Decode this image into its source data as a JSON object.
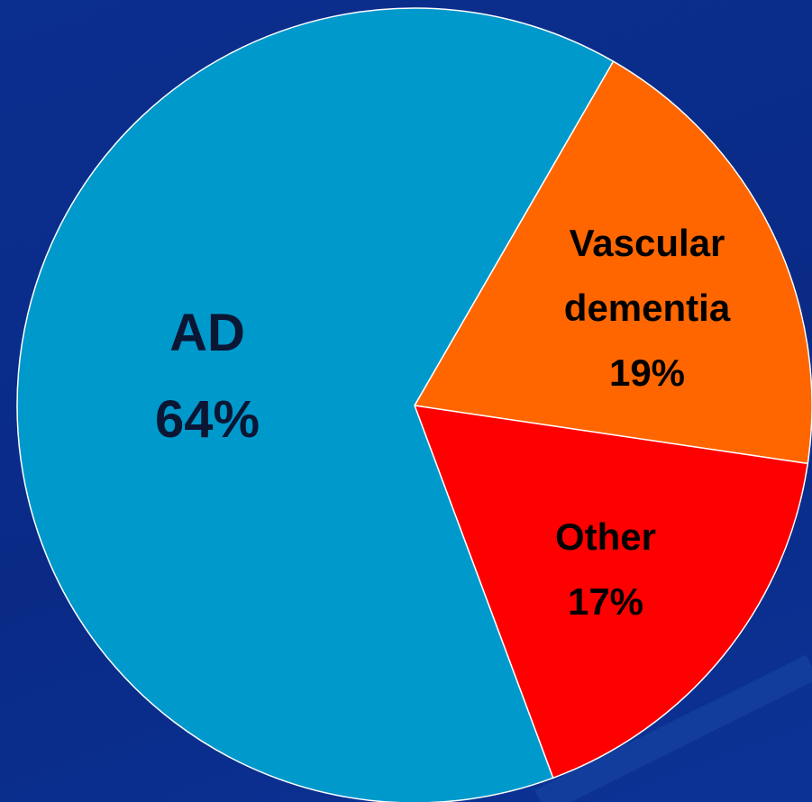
{
  "chart_data": {
    "type": "pie",
    "categories": [
      "Vascular dementia",
      "Other",
      "AD"
    ],
    "values": [
      19,
      17,
      64
    ],
    "value_labels": [
      "19%",
      "17%",
      "64%"
    ],
    "colors": [
      "#ff6600",
      "#ff0000",
      "#0099cc"
    ]
  }
}
